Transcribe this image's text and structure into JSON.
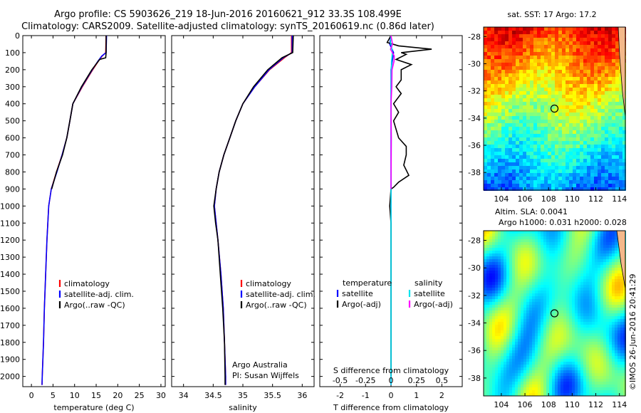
{
  "header": {
    "line1": "Argo profile: CS 5903626_219 18-Jun-2016 20160621_912 33.3S 108.499E",
    "line2": "Climatology: CARS2009. Satellite-adjusted climatology: synTS_20160619.nc (0.86d later)"
  },
  "stamp": "©IMOS 26-Jun-2016 20:41:29",
  "colors": {
    "climatology": "#ff0000",
    "satellite": "#0000ff",
    "argo": "#000000",
    "sal_satellite": "#00e5ee",
    "sal_argo": "#ff00ff"
  },
  "chart_data": [
    {
      "type": "line",
      "name": "temperature-profile",
      "xlabel": "temperature (deg C)",
      "ylabel": "",
      "xlim": [
        -2,
        31
      ],
      "ylim": [
        2060,
        0
      ],
      "xticks": [
        0,
        5,
        10,
        15,
        20,
        25,
        30
      ],
      "yticks": [
        0,
        100,
        200,
        300,
        400,
        500,
        600,
        700,
        800,
        900,
        1000,
        1100,
        1200,
        1300,
        1400,
        1500,
        1600,
        1700,
        1800,
        1900,
        2000
      ],
      "legend": {
        "placement": "center-left",
        "entries": [
          "climatology",
          "satellite-adj. clim.",
          "Argo(..raw -QC)"
        ]
      },
      "series": [
        {
          "name": "climatology",
          "color": "#ff0000",
          "depth": [
            0,
            100,
            120,
            150,
            200,
            300,
            400,
            500,
            600,
            700,
            800,
            900,
            1000,
            1200,
            1400,
            1600,
            1800,
            2000,
            2050
          ],
          "values": [
            17.3,
            17.2,
            16.4,
            15.5,
            14.2,
            11.8,
            9.6,
            8.9,
            8.2,
            7.1,
            5.8,
            4.6,
            4.0,
            3.6,
            3.3,
            3.0,
            2.8,
            2.5,
            2.45
          ]
        },
        {
          "name": "satellite-adj. clim.",
          "color": "#0000ff",
          "depth": [
            0,
            100,
            120,
            150,
            200,
            300,
            400,
            500,
            600,
            700,
            800,
            900,
            1000,
            1200,
            1400,
            1600,
            1800,
            2000,
            2050
          ],
          "values": [
            17.4,
            17.3,
            16.3,
            15.4,
            14.1,
            11.7,
            9.6,
            8.9,
            8.2,
            7.1,
            5.9,
            4.6,
            4.0,
            3.6,
            3.3,
            3.0,
            2.8,
            2.5,
            2.45
          ]
        },
        {
          "name": "Argo(..raw -QC)",
          "color": "#000000",
          "depth": [
            0,
            100,
            130,
            140,
            200,
            300,
            400,
            500,
            600,
            700,
            800,
            900
          ],
          "values": [
            17.3,
            17.3,
            17.2,
            15.8,
            14.0,
            11.6,
            9.6,
            8.9,
            8.2,
            7.2,
            5.8,
            4.7
          ]
        }
      ]
    },
    {
      "type": "line",
      "name": "salinity-profile",
      "xlabel": "salinity",
      "ylabel": "",
      "xlim": [
        33.8,
        36.2
      ],
      "ylim": [
        2060,
        0
      ],
      "xticks": [
        34,
        34.5,
        35,
        35.5,
        36
      ],
      "legend": {
        "placement": "center-left",
        "entries": [
          "climatology",
          "satellite-adj. clim.",
          "Argo(..raw -QC)"
        ]
      },
      "annotation": [
        "Argo Australia",
        "PI: Susan Wijffels"
      ],
      "series": [
        {
          "name": "climatology",
          "color": "#ff0000",
          "depth": [
            0,
            100,
            130,
            200,
            300,
            400,
            500,
            600,
            700,
            800,
            900,
            1000,
            1100,
            1200,
            1400,
            1600,
            1800,
            2000,
            2050
          ],
          "values": [
            35.82,
            35.82,
            35.7,
            35.45,
            35.2,
            35.0,
            34.88,
            34.78,
            34.68,
            34.6,
            34.55,
            34.52,
            34.55,
            34.58,
            34.63,
            34.67,
            34.69,
            34.71,
            34.71
          ]
        },
        {
          "name": "satellite-adj. clim.",
          "color": "#0000ff",
          "depth": [
            0,
            100,
            130,
            200,
            300,
            400,
            500,
            600,
            700,
            800,
            900,
            1000,
            1100,
            1200,
            1400,
            1600,
            1800,
            2000,
            2050
          ],
          "values": [
            35.83,
            35.83,
            35.68,
            35.44,
            35.2,
            35.0,
            34.88,
            34.78,
            34.68,
            34.6,
            34.55,
            34.52,
            34.55,
            34.58,
            34.63,
            34.67,
            34.69,
            34.71,
            34.71
          ]
        },
        {
          "name": "Argo(..raw -QC)",
          "color": "#000000",
          "depth": [
            0,
            100,
            130,
            200,
            300,
            400,
            500,
            600,
            700,
            800,
            900,
            1000,
            1100,
            1200,
            1400,
            1600,
            1800,
            2000,
            2050
          ],
          "values": [
            35.85,
            35.84,
            35.66,
            35.42,
            35.18,
            35.0,
            34.88,
            34.78,
            34.68,
            34.6,
            34.55,
            34.51,
            34.54,
            34.58,
            34.62,
            34.66,
            34.69,
            34.7,
            34.7
          ]
        }
      ]
    },
    {
      "type": "line",
      "name": "difference-profile",
      "xlabel": "T difference from climatology",
      "xlabel_top": "S difference from climatology",
      "xlim": [
        -2.8,
        2.8
      ],
      "ylim": [
        2060,
        0
      ],
      "xticks": [
        -2,
        -1,
        0,
        1,
        2
      ],
      "xticks_top": [
        "-0.5",
        "-0.25",
        "0",
        "0.25",
        "0.5"
      ],
      "legend": {
        "placement": "center",
        "headers": [
          "temperature",
          "salinity"
        ],
        "entries": [
          "satellite",
          "Argo(-adj)",
          "satellite",
          "Argo(-adj)"
        ]
      },
      "series": [
        {
          "name": "T satellite",
          "color": "#0000ff",
          "depth": [
            0,
            50,
            100,
            200,
            400,
            600,
            900,
            1200,
            1600,
            2000,
            2050
          ],
          "values": [
            0,
            -0.05,
            0.1,
            0,
            0,
            0,
            0,
            0,
            0,
            0,
            0
          ]
        },
        {
          "name": "T Argo(-adj)",
          "color": "#000000",
          "depth": [
            0,
            40,
            60,
            80,
            100,
            110,
            140,
            170,
            200,
            260,
            300,
            340,
            400,
            450,
            500,
            600,
            650,
            700,
            760,
            820,
            860,
            890,
            900,
            1000,
            1100,
            1200,
            1600,
            2000
          ],
          "values": [
            0,
            -0.15,
            0.3,
            1.6,
            0.4,
            0.6,
            0.2,
            0.8,
            0.4,
            0.4,
            0.2,
            0.4,
            0.1,
            0.3,
            0.1,
            0.3,
            0.6,
            0.6,
            0.5,
            0.7,
            0.3,
            0.1,
            0.0,
            -0.05,
            0,
            0,
            0,
            0
          ]
        },
        {
          "name": "S satellite",
          "color": "#00e5ee",
          "depth": [
            0,
            40,
            60,
            100,
            150,
            200,
            400,
            600,
            900,
            1200,
            1600,
            2000,
            2050
          ],
          "values": [
            0,
            -0.02,
            0.02,
            0.05,
            0.02,
            0.01,
            0.0,
            0.01,
            0.0,
            0,
            0,
            0,
            0
          ]
        },
        {
          "name": "S Argo(-adj)",
          "color": "#ff00ff",
          "depth": [
            0,
            50,
            80,
            120,
            150,
            200,
            300,
            400,
            600,
            900
          ],
          "values": [
            0,
            0.06,
            -0.02,
            0.13,
            0.12,
            0.04,
            0.03,
            0.0,
            0.01,
            0.0
          ]
        }
      ]
    },
    {
      "type": "heatmap",
      "name": "sst-map",
      "title": "sat. SST: 17 Argo: 17.2",
      "xticks": [
        104,
        106,
        108,
        110,
        112,
        114
      ],
      "yticks": [
        -28,
        -30,
        -32,
        -34,
        -36,
        -38
      ],
      "xlim": [
        102.5,
        114.5
      ],
      "ylim": [
        -39.3,
        -27.3
      ],
      "marker": {
        "lon": 108.5,
        "lat": -33.3
      }
    },
    {
      "type": "heatmap",
      "name": "sla-map",
      "title": "Altim. SLA: 0.0041",
      "subtitle": "Argo h1000: 0.031 h2000: 0.028",
      "xticks": [
        104,
        106,
        108,
        110,
        112,
        114
      ],
      "yticks": [
        -28,
        -30,
        -32,
        -34,
        -36,
        -38
      ],
      "xlim": [
        102.5,
        114.5
      ],
      "ylim": [
        -39.3,
        -27.3
      ],
      "marker": {
        "lon": 108.5,
        "lat": -33.3
      }
    }
  ]
}
